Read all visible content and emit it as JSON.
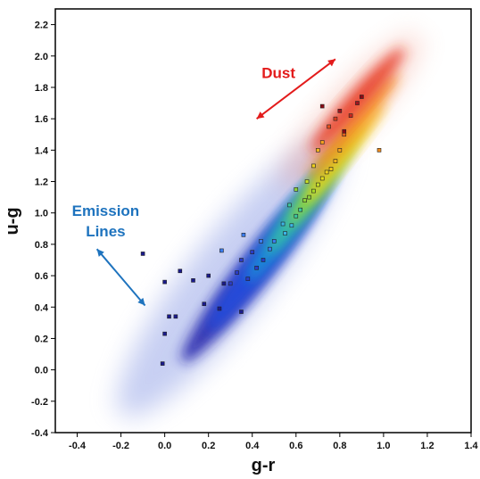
{
  "chart_data": {
    "type": "scatter",
    "xlabel": "g-r",
    "ylabel": "u-g",
    "xlim": [
      -0.5,
      1.4
    ],
    "ylim": [
      -0.4,
      2.3
    ],
    "xticks": [
      -0.4,
      -0.2,
      0.0,
      0.2,
      0.4,
      0.6,
      0.8,
      1.0,
      1.2,
      1.4
    ],
    "xtick_labels": [
      "-0.4",
      "-0.2",
      "0.0",
      "0.2",
      "0.4",
      "0.6",
      "0.8",
      "1.0",
      "1.2",
      "1.4"
    ],
    "yticks": [
      -0.4,
      -0.2,
      0.0,
      0.2,
      0.4,
      0.6,
      0.8,
      1.0,
      1.2,
      1.4,
      1.6,
      1.8,
      2.0,
      2.2
    ],
    "ytick_labels": [
      "-0.4",
      "-0.2",
      "0.0",
      "0.2",
      "0.4",
      "0.6",
      "0.8",
      "1.0",
      "1.2",
      "1.4",
      "1.6",
      "1.8",
      "2.0",
      "2.2"
    ],
    "grid": false,
    "density_bands": [
      {
        "color": "#1a1aa8",
        "cx": 0.4,
        "cy": 0.62,
        "length": 0.9,
        "width": 0.1,
        "angle_deg": 34
      },
      {
        "color": "#2450e0",
        "cx": 0.48,
        "cy": 0.75,
        "length": 0.8,
        "width": 0.09,
        "angle_deg": 34
      },
      {
        "color": "#1e9ad6",
        "cx": 0.58,
        "cy": 0.95,
        "length": 0.6,
        "width": 0.07,
        "angle_deg": 36
      },
      {
        "color": "#3cc89a",
        "cx": 0.66,
        "cy": 1.1,
        "length": 0.55,
        "width": 0.06,
        "angle_deg": 36
      },
      {
        "color": "#a4dc28",
        "cx": 0.74,
        "cy": 1.25,
        "length": 0.5,
        "width": 0.05,
        "angle_deg": 36
      },
      {
        "color": "#f5d21e",
        "cx": 0.82,
        "cy": 1.38,
        "length": 0.5,
        "width": 0.05,
        "angle_deg": 34
      },
      {
        "color": "#f68a1e",
        "cx": 0.86,
        "cy": 1.55,
        "length": 0.55,
        "width": 0.06,
        "angle_deg": 32
      },
      {
        "color": "#e6321e",
        "cx": 0.88,
        "cy": 1.72,
        "length": 0.55,
        "width": 0.06,
        "angle_deg": 30
      }
    ],
    "halo": {
      "color": "#9aa8e8",
      "cx": 0.3,
      "cy": 0.6,
      "length": 1.4,
      "width": 0.26,
      "angle_deg": 34
    },
    "red_halo": {
      "color": "#f2a090",
      "cx": 0.85,
      "cy": 1.65,
      "length": 0.8,
      "width": 0.14,
      "angle_deg": 30
    },
    "points": [
      {
        "x": -0.1,
        "y": 0.74,
        "c": "#1a1a8c"
      },
      {
        "x": 0.0,
        "y": 0.56,
        "c": "#1a1a8c"
      },
      {
        "x": 0.07,
        "y": 0.63,
        "c": "#1a1a8c"
      },
      {
        "x": 0.13,
        "y": 0.57,
        "c": "#1a1a8c"
      },
      {
        "x": 0.02,
        "y": 0.34,
        "c": "#1a1a8c"
      },
      {
        "x": 0.05,
        "y": 0.34,
        "c": "#1a1a8c"
      },
      {
        "x": 0.0,
        "y": 0.23,
        "c": "#1a1a8c"
      },
      {
        "x": -0.01,
        "y": 0.04,
        "c": "#1a1a8c"
      },
      {
        "x": 0.18,
        "y": 0.42,
        "c": "#1a1a8c"
      },
      {
        "x": 0.25,
        "y": 0.39,
        "c": "#1a1a8c"
      },
      {
        "x": 0.35,
        "y": 0.37,
        "c": "#1a1a8c"
      },
      {
        "x": 0.3,
        "y": 0.55,
        "c": "#2a3cc8"
      },
      {
        "x": 0.33,
        "y": 0.62,
        "c": "#2a3cc8"
      },
      {
        "x": 0.38,
        "y": 0.58,
        "c": "#2a3cc8"
      },
      {
        "x": 0.42,
        "y": 0.65,
        "c": "#2a3cc8"
      },
      {
        "x": 0.45,
        "y": 0.7,
        "c": "#2a3cc8"
      },
      {
        "x": 0.35,
        "y": 0.7,
        "c": "#2a3cc8"
      },
      {
        "x": 0.48,
        "y": 0.77,
        "c": "#3a7cf0"
      },
      {
        "x": 0.5,
        "y": 0.82,
        "c": "#3a7cf0"
      },
      {
        "x": 0.36,
        "y": 0.86,
        "c": "#3a7cf0"
      },
      {
        "x": 0.55,
        "y": 0.87,
        "c": "#3cb4e6"
      },
      {
        "x": 0.58,
        "y": 0.92,
        "c": "#3cb4e6"
      },
      {
        "x": 0.6,
        "y": 0.98,
        "c": "#3cc8a0"
      },
      {
        "x": 0.62,
        "y": 1.02,
        "c": "#3cc8a0"
      },
      {
        "x": 0.64,
        "y": 1.08,
        "c": "#8cd23c"
      },
      {
        "x": 0.66,
        "y": 1.1,
        "c": "#8cd23c"
      },
      {
        "x": 0.68,
        "y": 1.14,
        "c": "#a8dc28"
      },
      {
        "x": 0.7,
        "y": 1.18,
        "c": "#c8e028"
      },
      {
        "x": 0.72,
        "y": 1.22,
        "c": "#e6dc1e"
      },
      {
        "x": 0.74,
        "y": 1.26,
        "c": "#f0d21e"
      },
      {
        "x": 0.76,
        "y": 1.28,
        "c": "#f0c81e"
      },
      {
        "x": 0.78,
        "y": 1.33,
        "c": "#f5b41e"
      },
      {
        "x": 0.7,
        "y": 1.4,
        "c": "#f5b41e"
      },
      {
        "x": 0.72,
        "y": 1.45,
        "c": "#f5a01e"
      },
      {
        "x": 0.8,
        "y": 1.4,
        "c": "#f5a01e"
      },
      {
        "x": 0.98,
        "y": 1.4,
        "c": "#f08c1e"
      },
      {
        "x": 0.82,
        "y": 1.5,
        "c": "#e6641e"
      },
      {
        "x": 0.75,
        "y": 1.55,
        "c": "#e6501e"
      },
      {
        "x": 0.78,
        "y": 1.6,
        "c": "#dc3c1e"
      },
      {
        "x": 0.85,
        "y": 1.62,
        "c": "#c8281e"
      },
      {
        "x": 0.88,
        "y": 1.7,
        "c": "#a0141e"
      },
      {
        "x": 0.8,
        "y": 1.65,
        "c": "#a0141e"
      },
      {
        "x": 0.72,
        "y": 1.68,
        "c": "#8c0a14"
      },
      {
        "x": 0.9,
        "y": 1.74,
        "c": "#8c0a14"
      },
      {
        "x": 0.82,
        "y": 1.52,
        "c": "#8c0a14"
      },
      {
        "x": 0.54,
        "y": 0.93,
        "c": "#3cb4e6"
      },
      {
        "x": 0.65,
        "y": 1.2,
        "c": "#c8e028"
      },
      {
        "x": 0.6,
        "y": 1.15,
        "c": "#8cd23c"
      },
      {
        "x": 0.57,
        "y": 1.05,
        "c": "#3cc8a0"
      },
      {
        "x": 0.68,
        "y": 1.3,
        "c": "#f0d21e"
      },
      {
        "x": 0.44,
        "y": 0.82,
        "c": "#3a7cf0"
      },
      {
        "x": 0.4,
        "y": 0.75,
        "c": "#2a3cc8"
      },
      {
        "x": 0.27,
        "y": 0.55,
        "c": "#1a1a8c"
      },
      {
        "x": 0.2,
        "y": 0.6,
        "c": "#1a1a8c"
      },
      {
        "x": 0.26,
        "y": 0.76,
        "c": "#3a7cf0"
      }
    ],
    "annotations": [
      {
        "text": "Dust",
        "color": "#e31b1b",
        "x": 0.52,
        "y": 1.86,
        "arrow": {
          "x1": 0.42,
          "y1": 1.6,
          "x2": 0.78,
          "y2": 1.98
        }
      },
      {
        "text": "Emission",
        "color": "#1e73be",
        "x": -0.27,
        "y": 0.98,
        "arrow": {
          "x1": -0.31,
          "y1": 0.77,
          "x2": -0.09,
          "y2": 0.41
        }
      },
      {
        "text": "Lines",
        "color": "#1e73be",
        "x": -0.27,
        "y": 0.85
      }
    ]
  }
}
